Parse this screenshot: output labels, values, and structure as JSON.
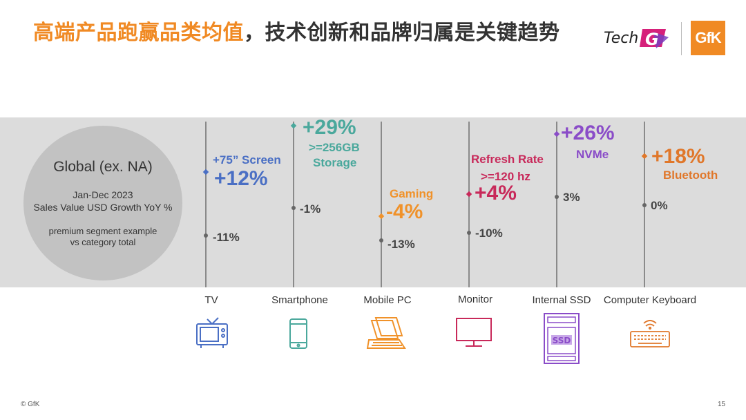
{
  "title": {
    "part1": "高端产品跑赢品类均值",
    "part2": "，技术创新和品牌归属是关键趋势"
  },
  "logos": {
    "tech": "Tech",
    "g": "G",
    "gfk": "GfK"
  },
  "global": {
    "title": "Global (ex. NA)",
    "period": "Jan-Dec 2023",
    "metric": "Sales Value USD Growth YoY %",
    "note1": "premium segment example",
    "note2": "vs category total"
  },
  "colors": {
    "tv": "#4a6fc4",
    "smartphone": "#4aa89c",
    "mobile_pc": "#f0922a",
    "monitor": "#c8295a",
    "ssd": "#8a4cc8",
    "keyboard": "#e0772a"
  },
  "chart_data": {
    "type": "scatter",
    "ylabel": "Sales Value USD Growth YoY %",
    "categories": [
      "TV",
      "Smartphone",
      "Mobile PC",
      "Monitor",
      "Internal SSD",
      "Computer Keyboard"
    ],
    "series": [
      {
        "name": "premium segment",
        "values": [
          12,
          29,
          -4,
          4,
          26,
          18
        ]
      },
      {
        "name": "category total",
        "values": [
          -11,
          -1,
          -13,
          -10,
          3,
          0
        ]
      }
    ],
    "premium_labels": [
      "+75” Screen",
      ">=256GB Storage",
      "Gaming",
      "Refresh Rate >=120 hz",
      "NVMe",
      "Bluetooth"
    ],
    "premium_value_text": [
      "+12%",
      "+29%",
      "-4%",
      "+4%",
      "+26%",
      "+18%"
    ],
    "total_value_text": [
      "-11%",
      "-1%",
      "-13%",
      "-10%",
      "3%",
      "0%"
    ]
  },
  "segments": {
    "tv": {
      "l1": "+75” Screen"
    },
    "smartphone": {
      "l1": ">=256GB",
      "l2": "Storage"
    },
    "mobile_pc": {
      "l1": "Gaming"
    },
    "monitor": {
      "l1": "Refresh Rate",
      "l2": ">=120 hz"
    },
    "ssd": {
      "l1": "NVMe",
      "icon_text": "SSD"
    },
    "keyboard": {
      "l1": "Bluetooth"
    }
  },
  "footer": {
    "copyright": "© GfK",
    "page": "15"
  }
}
